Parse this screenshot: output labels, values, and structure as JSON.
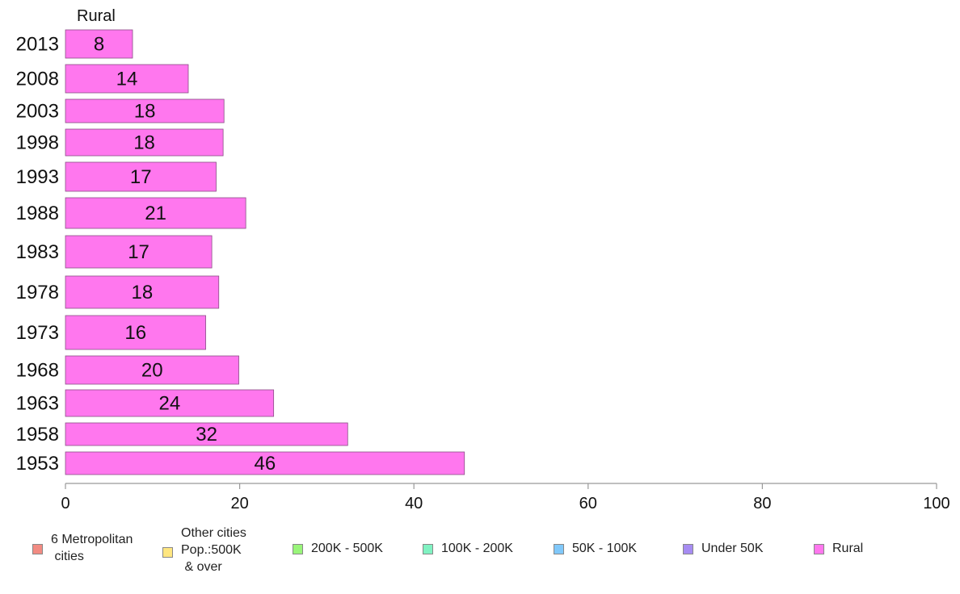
{
  "chart_data": {
    "type": "bar",
    "orientation": "horizontal",
    "title": "Rural",
    "categories": [
      "2013",
      "2008",
      "2003",
      "1998",
      "1993",
      "1988",
      "1983",
      "1978",
      "1973",
      "1968",
      "1963",
      "1958",
      "1953"
    ],
    "values": [
      7.7,
      14.1,
      18.2,
      18.1,
      17.3,
      20.7,
      16.8,
      17.6,
      16.1,
      19.9,
      23.9,
      32.4,
      45.8
    ],
    "value_labels": [
      "8",
      "14",
      "18",
      "18",
      "17",
      "21",
      "17",
      "18",
      "16",
      "20",
      "24",
      "32",
      "46"
    ],
    "series": [
      {
        "name": "Rural",
        "color": "#ff77ee"
      }
    ],
    "xlim": [
      0,
      100
    ],
    "xticks": [
      "0",
      "20",
      "40",
      "60",
      "80",
      "100"
    ],
    "grid": false,
    "legend_position": "bottom"
  },
  "legend": [
    {
      "label": "6 Metropolitan\n cities",
      "color": "#f28b82"
    },
    {
      "label": "Other cities\nPop.:500K\n & over",
      "color": "#ffe680"
    },
    {
      "label": "200K - 500K",
      "color": "#99f57a"
    },
    {
      "label": "100K - 200K",
      "color": "#80f2c2"
    },
    {
      "label": "50K - 100K",
      "color": "#80c8fa"
    },
    {
      "label": "Under 50K",
      "color": "#a68cf2"
    },
    {
      "label": "Rural",
      "color": "#ff77ee"
    }
  ]
}
